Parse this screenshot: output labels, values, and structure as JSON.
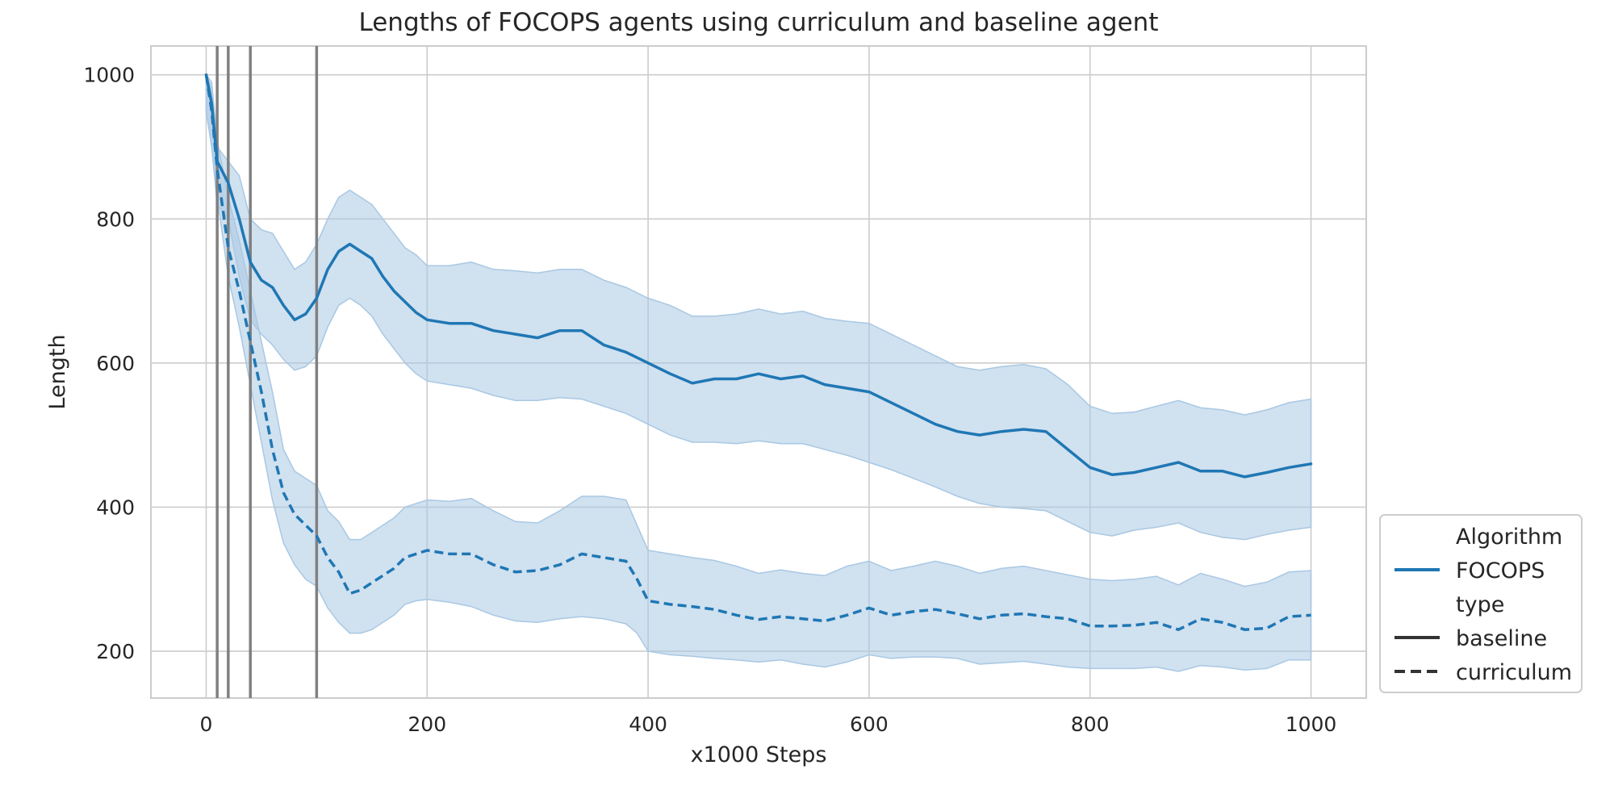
{
  "chart_data": {
    "type": "line",
    "title": "Lengths of FOCOPS agents using curriculum and baseline agent",
    "xlabel": "x1000 Steps",
    "ylabel": "Length",
    "xlim": [
      -50,
      1050
    ],
    "ylim": [
      135,
      1040
    ],
    "xticks": [
      0,
      200,
      400,
      600,
      800,
      1000
    ],
    "yticks": [
      200,
      400,
      600,
      800,
      1000
    ],
    "xtick_labels": [
      "0",
      "200",
      "400",
      "600",
      "800",
      "1000"
    ],
    "ytick_labels": [
      "200",
      "400",
      "600",
      "800",
      "1000"
    ],
    "grid": true,
    "vertical_markers": [
      10,
      20,
      40,
      100
    ],
    "marker_color": "#808080",
    "line_color": "#1f77b4",
    "band_color": "#a9c8e3",
    "legend": {
      "placement": "right-bottom, outside",
      "entries": [
        {
          "label": "Algorithm",
          "kind": "header"
        },
        {
          "label": "FOCOPS",
          "kind": "solid-color"
        },
        {
          "label": "type",
          "kind": "header"
        },
        {
          "label": "baseline",
          "kind": "solid-dark"
        },
        {
          "label": "curriculum",
          "kind": "dashed-dark"
        }
      ]
    },
    "series": [
      {
        "algorithm": "FOCOPS",
        "type": "baseline",
        "style": "solid",
        "x": [
          0,
          5,
          10,
          20,
          30,
          40,
          50,
          60,
          70,
          80,
          90,
          100,
          110,
          120,
          130,
          140,
          150,
          160,
          170,
          180,
          190,
          200,
          220,
          240,
          260,
          280,
          300,
          320,
          340,
          360,
          380,
          400,
          420,
          440,
          460,
          480,
          500,
          520,
          540,
          560,
          580,
          600,
          620,
          640,
          660,
          680,
          700,
          720,
          740,
          760,
          780,
          800,
          820,
          840,
          860,
          880,
          900,
          920,
          940,
          960,
          980,
          1000
        ],
        "y": [
          1000,
          960,
          880,
          850,
          800,
          740,
          715,
          705,
          680,
          660,
          668,
          690,
          730,
          755,
          765,
          755,
          745,
          720,
          700,
          685,
          670,
          660,
          655,
          655,
          645,
          640,
          635,
          645,
          645,
          625,
          615,
          600,
          585,
          572,
          578,
          578,
          585,
          578,
          582,
          570,
          565,
          560,
          545,
          530,
          515,
          505,
          500,
          505,
          508,
          505,
          480,
          455,
          445,
          448,
          455,
          462,
          450,
          450,
          442,
          448,
          455,
          460
        ],
        "y_lower": [
          950,
          900,
          820,
          800,
          720,
          660,
          640,
          625,
          605,
          590,
          595,
          610,
          650,
          680,
          690,
          680,
          665,
          640,
          620,
          600,
          585,
          575,
          570,
          565,
          555,
          548,
          548,
          552,
          550,
          540,
          530,
          515,
          500,
          490,
          490,
          488,
          492,
          488,
          488,
          480,
          472,
          462,
          452,
          440,
          428,
          415,
          405,
          400,
          398,
          395,
          380,
          365,
          360,
          368,
          372,
          378,
          365,
          358,
          355,
          362,
          368,
          372
        ],
        "y_upper": [
          1000,
          980,
          900,
          880,
          860,
          800,
          785,
          780,
          755,
          730,
          740,
          765,
          800,
          830,
          840,
          830,
          820,
          800,
          780,
          760,
          750,
          735,
          735,
          740,
          730,
          728,
          725,
          730,
          730,
          715,
          705,
          690,
          680,
          665,
          665,
          668,
          675,
          668,
          672,
          662,
          658,
          655,
          640,
          625,
          610,
          595,
          590,
          595,
          598,
          592,
          570,
          540,
          530,
          532,
          540,
          548,
          538,
          535,
          528,
          535,
          545,
          550
        ]
      },
      {
        "algorithm": "FOCOPS",
        "type": "curriculum",
        "style": "dashed",
        "x": [
          0,
          5,
          10,
          20,
          30,
          40,
          50,
          60,
          70,
          80,
          90,
          100,
          110,
          120,
          130,
          140,
          150,
          160,
          170,
          180,
          190,
          200,
          220,
          240,
          260,
          280,
          300,
          320,
          340,
          360,
          380,
          390,
          400,
          420,
          440,
          460,
          480,
          500,
          520,
          540,
          560,
          580,
          600,
          620,
          640,
          660,
          680,
          700,
          720,
          740,
          760,
          780,
          800,
          820,
          840,
          860,
          880,
          900,
          920,
          940,
          960,
          980,
          1000
        ],
        "y": [
          1000,
          950,
          870,
          760,
          700,
          630,
          560,
          480,
          420,
          390,
          375,
          360,
          330,
          310,
          280,
          285,
          295,
          305,
          315,
          330,
          335,
          340,
          335,
          335,
          320,
          310,
          312,
          320,
          335,
          330,
          325,
          300,
          270,
          265,
          262,
          258,
          250,
          244,
          248,
          245,
          242,
          250,
          260,
          250,
          255,
          258,
          252,
          245,
          250,
          252,
          248,
          245,
          235,
          235,
          236,
          240,
          230,
          245,
          240,
          230,
          232,
          248,
          250
        ],
        "y_lower": [
          950,
          900,
          830,
          720,
          650,
          570,
          490,
          410,
          350,
          320,
          300,
          290,
          260,
          240,
          225,
          225,
          230,
          240,
          250,
          265,
          270,
          272,
          268,
          262,
          250,
          242,
          240,
          245,
          248,
          245,
          238,
          225,
          200,
          195,
          193,
          190,
          188,
          185,
          188,
          182,
          178,
          185,
          195,
          190,
          192,
          192,
          190,
          182,
          184,
          186,
          182,
          178,
          176,
          176,
          176,
          178,
          172,
          180,
          178,
          174,
          176,
          188,
          188
        ],
        "y_upper": [
          1000,
          990,
          910,
          830,
          770,
          700,
          630,
          560,
          480,
          450,
          440,
          430,
          395,
          380,
          355,
          355,
          365,
          375,
          385,
          400,
          405,
          410,
          408,
          412,
          395,
          380,
          378,
          395,
          415,
          415,
          410,
          375,
          340,
          335,
          330,
          326,
          318,
          308,
          313,
          308,
          305,
          318,
          325,
          312,
          318,
          325,
          318,
          308,
          315,
          318,
          312,
          306,
          300,
          298,
          300,
          304,
          292,
          308,
          300,
          290,
          296,
          310,
          312
        ]
      }
    ]
  }
}
